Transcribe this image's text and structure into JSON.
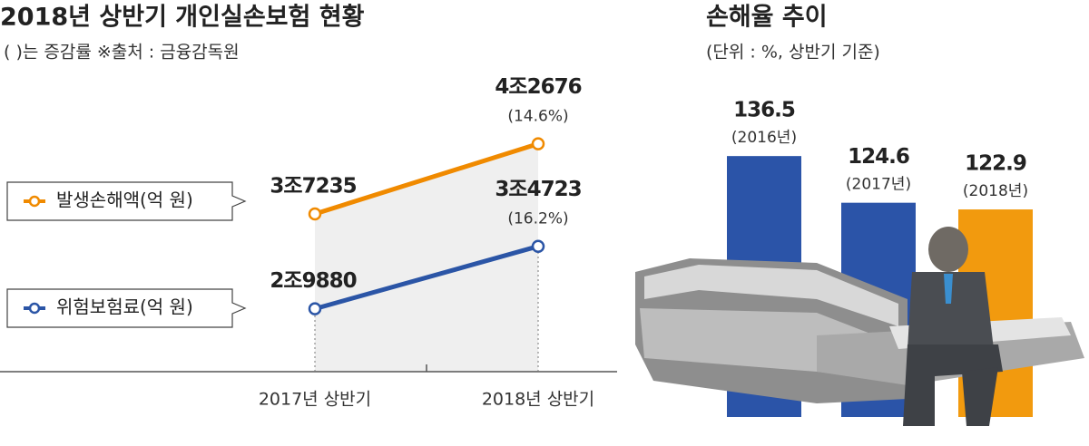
{
  "chart_data": [
    {
      "type": "line",
      "title": "2018년 상반기 개인실손보험 현황",
      "subtitle": "( )는 증감률  ※출처 : 금융감독원",
      "categories": [
        "2017년 상반기",
        "2018년 상반기"
      ],
      "series": [
        {
          "name": "발생손해액(억 원)",
          "color": "#f08a00",
          "values": [
            37235,
            42676
          ],
          "value_labels": [
            "3조7235",
            "4조2676"
          ],
          "change_label": "(14.6%)"
        },
        {
          "name": "위험보험료(억 원)",
          "color": "#2b55a6",
          "values": [
            29880,
            34723
          ],
          "value_labels": [
            "2조9880",
            "3조4723"
          ],
          "change_label": "(16.2%)"
        }
      ],
      "ylim": [
        25000,
        47500
      ]
    },
    {
      "type": "bar",
      "title": "손해율 추이",
      "subtitle": "(단위 : %, 상반기 기준)",
      "categories": [
        "(2016년)",
        "(2017년)",
        "(2018년)"
      ],
      "values": [
        136.5,
        124.6,
        122.9
      ],
      "colors": [
        "#2b54a8",
        "#2b54a8",
        "#f29a0e"
      ],
      "ylim": [
        70,
        140
      ]
    }
  ]
}
